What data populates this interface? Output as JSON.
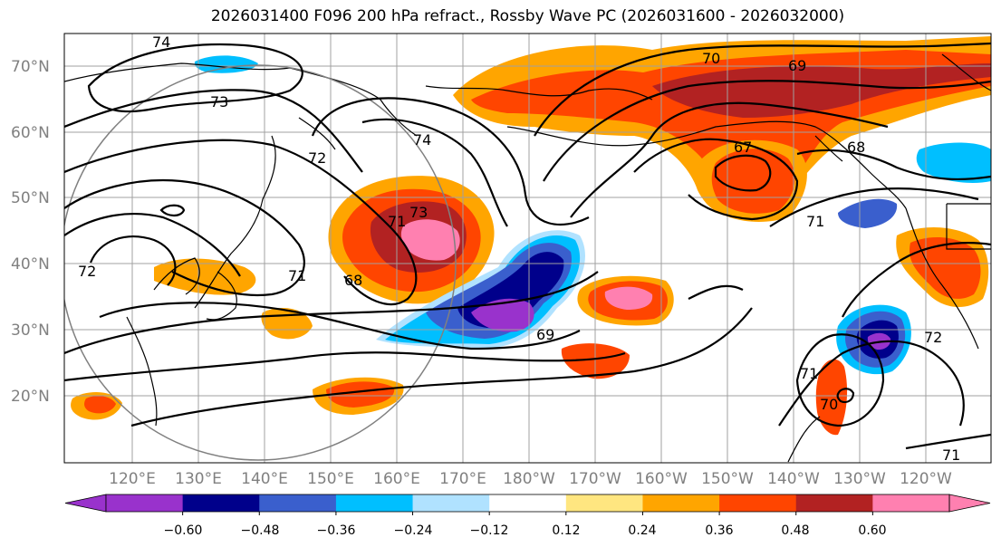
{
  "title": "2026031400 F096 200 hPa refract., Rossby Wave PC (2026031600 - 2026032000)",
  "lat_labels": [
    "70°N",
    "60°N",
    "50°N",
    "40°N",
    "30°N",
    "20°N"
  ],
  "lon_labels": [
    "120°E",
    "130°E",
    "140°E",
    "150°E",
    "160°E",
    "170°E",
    "180°W",
    "170°W",
    "160°W",
    "150°W",
    "140°W",
    "130°W",
    "120°W"
  ],
  "contour_labels": [
    "74",
    "73",
    "72",
    "71",
    "72",
    "73",
    "74",
    "71",
    "68",
    "69",
    "70",
    "69",
    "67",
    "68",
    "71",
    "72",
    "71",
    "70",
    "71"
  ],
  "colorbar": {
    "ticks": [
      "−0.60",
      "−0.48",
      "−0.36",
      "−0.24",
      "−0.12",
      "0.12",
      "0.24",
      "0.36",
      "0.48",
      "0.60"
    ],
    "colors": [
      "#9932cc",
      "#00008b",
      "#3a5fcd",
      "#00bfff",
      "#b0e2ff",
      "#ffffff",
      "#ffe680",
      "#ffa500",
      "#ff4500",
      "#b22222",
      "#ff80b0"
    ]
  },
  "colors": {
    "circle": "#808080",
    "grid": "#a0a0a0",
    "contour": "#000000"
  }
}
